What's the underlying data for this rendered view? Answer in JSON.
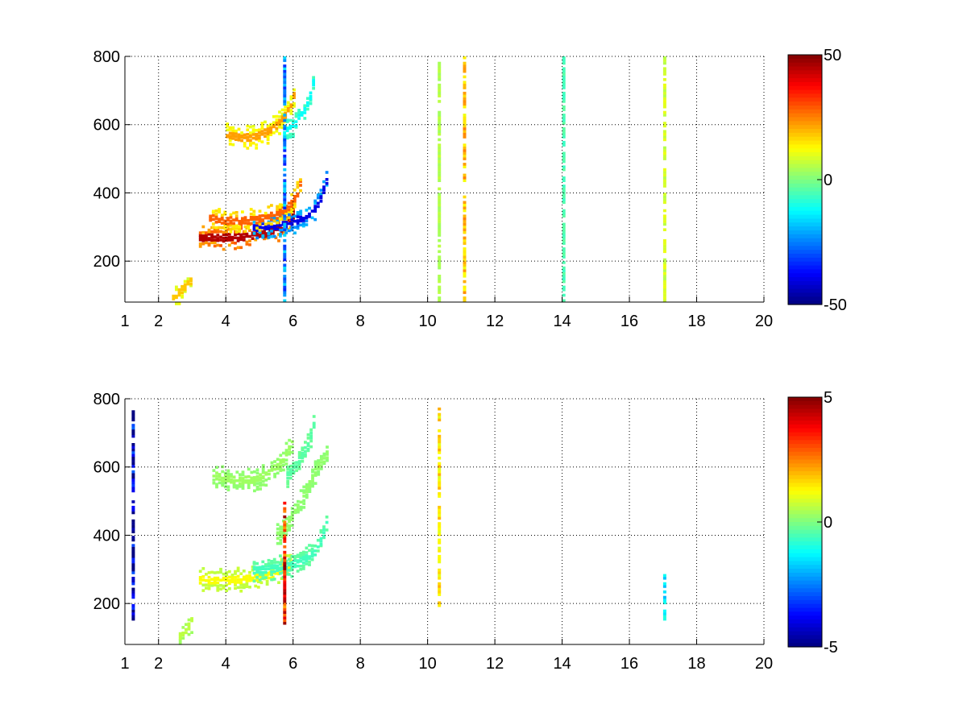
{
  "colors": {
    "background": "#ffffff",
    "axes": "#000000",
    "grid": "#000000",
    "colormap": "jet"
  },
  "chart_data": [
    {
      "type": "heatmap",
      "title": "",
      "xlabel": "",
      "ylabel": "",
      "xlim": [
        1,
        20
      ],
      "ylim": [
        80,
        800
      ],
      "xticks": [
        1,
        2,
        4,
        6,
        8,
        10,
        12,
        14,
        16,
        18,
        20
      ],
      "xtick_labels": [
        "1",
        "2",
        "4",
        "6",
        "8",
        "10",
        "12",
        "14",
        "16",
        "18",
        "20"
      ],
      "yticks": [
        200,
        400,
        600,
        800
      ],
      "ytick_labels": [
        "200",
        "400",
        "600",
        "800"
      ],
      "grid": true,
      "colorbar": {
        "min": -50,
        "max": 50,
        "ticks": [
          50,
          0,
          -50
        ],
        "tick_labels": [
          "50",
          "0",
          "-50"
        ]
      },
      "features": [
        {
          "kind": "curve",
          "value": 45,
          "points": [
            [
              3.2,
              268
            ],
            [
              3.6,
              268
            ],
            [
              4.0,
              268
            ],
            [
              4.4,
              270
            ],
            [
              4.8,
              275
            ],
            [
              5.2,
              282
            ],
            [
              5.6,
              295
            ],
            [
              5.9,
              318
            ],
            [
              6.0,
              345
            ]
          ]
        },
        {
          "kind": "curve",
          "value": -40,
          "points": [
            [
              4.8,
              298
            ],
            [
              5.2,
              300
            ],
            [
              5.6,
              305
            ],
            [
              6.0,
              315
            ],
            [
              6.3,
              328
            ],
            [
              6.6,
              350
            ],
            [
              6.8,
              385
            ],
            [
              6.95,
              430
            ],
            [
              7.0,
              470
            ]
          ]
        },
        {
          "kind": "curve",
          "value": 28,
          "points": [
            [
              3.5,
              325
            ],
            [
              4.0,
              318
            ],
            [
              4.5,
              318
            ],
            [
              5.0,
              322
            ],
            [
              5.5,
              335
            ],
            [
              5.9,
              365
            ],
            [
              6.1,
              400
            ],
            [
              6.2,
              430
            ]
          ]
        },
        {
          "kind": "curve",
          "value": 22,
          "points": [
            [
              4.0,
              570
            ],
            [
              4.4,
              560
            ],
            [
              4.8,
              562
            ],
            [
              5.2,
              578
            ],
            [
              5.5,
              600
            ],
            [
              5.8,
              635
            ],
            [
              5.95,
              670
            ],
            [
              6.05,
              710
            ]
          ]
        },
        {
          "kind": "curve",
          "value": -12,
          "points": [
            [
              5.7,
              575
            ],
            [
              6.0,
              600
            ],
            [
              6.3,
              640
            ],
            [
              6.5,
              690
            ],
            [
              6.6,
              740
            ]
          ]
        },
        {
          "kind": "curve",
          "value": 18,
          "points": [
            [
              2.4,
              90
            ],
            [
              2.6,
              110
            ],
            [
              2.8,
              130
            ],
            [
              3.0,
              150
            ]
          ]
        },
        {
          "kind": "vline",
          "x": 5.75,
          "value": -25,
          "y0": 80,
          "y1": 800
        },
        {
          "kind": "vline",
          "x": 10.35,
          "value": 5,
          "y0": 80,
          "y1": 800
        },
        {
          "kind": "vline",
          "x": 11.1,
          "value": 18,
          "y0": 80,
          "y1": 800
        },
        {
          "kind": "vline",
          "x": 14.05,
          "value": -5,
          "y0": 80,
          "y1": 800
        },
        {
          "kind": "vline",
          "x": 17.05,
          "value": 8,
          "y0": 80,
          "y1": 800
        }
      ]
    },
    {
      "type": "heatmap",
      "title": "",
      "xlabel": "",
      "ylabel": "",
      "xlim": [
        1,
        20
      ],
      "ylim": [
        80,
        800
      ],
      "xticks": [
        1,
        2,
        4,
        6,
        8,
        10,
        12,
        14,
        16,
        18,
        20
      ],
      "xtick_labels": [
        "1",
        "2",
        "4",
        "6",
        "8",
        "10",
        "12",
        "14",
        "16",
        "18",
        "20"
      ],
      "yticks": [
        200,
        400,
        600,
        800
      ],
      "ytick_labels": [
        "200",
        "400",
        "600",
        "800"
      ],
      "grid": true,
      "colorbar": {
        "min": -5,
        "max": 5,
        "ticks": [
          5,
          0,
          -5
        ],
        "tick_labels": [
          "5",
          "0",
          "-5"
        ]
      },
      "features": [
        {
          "kind": "curve",
          "value": 1.2,
          "points": [
            [
              3.2,
              268
            ],
            [
              3.6,
              268
            ],
            [
              4.0,
              268
            ],
            [
              4.4,
              270
            ],
            [
              4.8,
              275
            ],
            [
              5.2,
              282
            ],
            [
              5.6,
              295
            ],
            [
              5.9,
              318
            ]
          ]
        },
        {
          "kind": "curve",
          "value": -0.6,
          "points": [
            [
              4.8,
              298
            ],
            [
              5.2,
              300
            ],
            [
              5.6,
              305
            ],
            [
              6.0,
              315
            ],
            [
              6.3,
              328
            ],
            [
              6.6,
              350
            ],
            [
              6.8,
              385
            ],
            [
              6.95,
              430
            ],
            [
              7.0,
              470
            ]
          ]
        },
        {
          "kind": "curve",
          "value": 0.2,
          "points": [
            [
              5.5,
              400
            ],
            [
              5.8,
              430
            ],
            [
              6.1,
              480
            ],
            [
              6.4,
              540
            ],
            [
              6.7,
              600
            ],
            [
              7.0,
              640
            ]
          ]
        },
        {
          "kind": "curve",
          "value": 0.3,
          "points": [
            [
              3.6,
              575
            ],
            [
              4.0,
              565
            ],
            [
              4.4,
              560
            ],
            [
              4.8,
              562
            ],
            [
              5.2,
              578
            ],
            [
              5.5,
              600
            ],
            [
              5.8,
              640
            ],
            [
              5.95,
              680
            ]
          ]
        },
        {
          "kind": "curve",
          "value": -0.4,
          "points": [
            [
              5.8,
              575
            ],
            [
              6.1,
              610
            ],
            [
              6.4,
              660
            ],
            [
              6.6,
              730
            ]
          ]
        },
        {
          "kind": "curve",
          "value": 0.6,
          "points": [
            [
              2.6,
              105
            ],
            [
              2.8,
              125
            ],
            [
              3.0,
              155
            ]
          ]
        },
        {
          "kind": "vline",
          "x": 1.25,
          "value": -4.5,
          "y0": 150,
          "y1": 760
        },
        {
          "kind": "vline",
          "x": 5.75,
          "value": 3.5,
          "y0": 130,
          "y1": 500
        },
        {
          "kind": "vline",
          "x": 10.35,
          "value": 1.5,
          "y0": 190,
          "y1": 770
        },
        {
          "kind": "vline",
          "x": 17.05,
          "value": -1.5,
          "y0": 150,
          "y1": 290
        }
      ]
    }
  ]
}
